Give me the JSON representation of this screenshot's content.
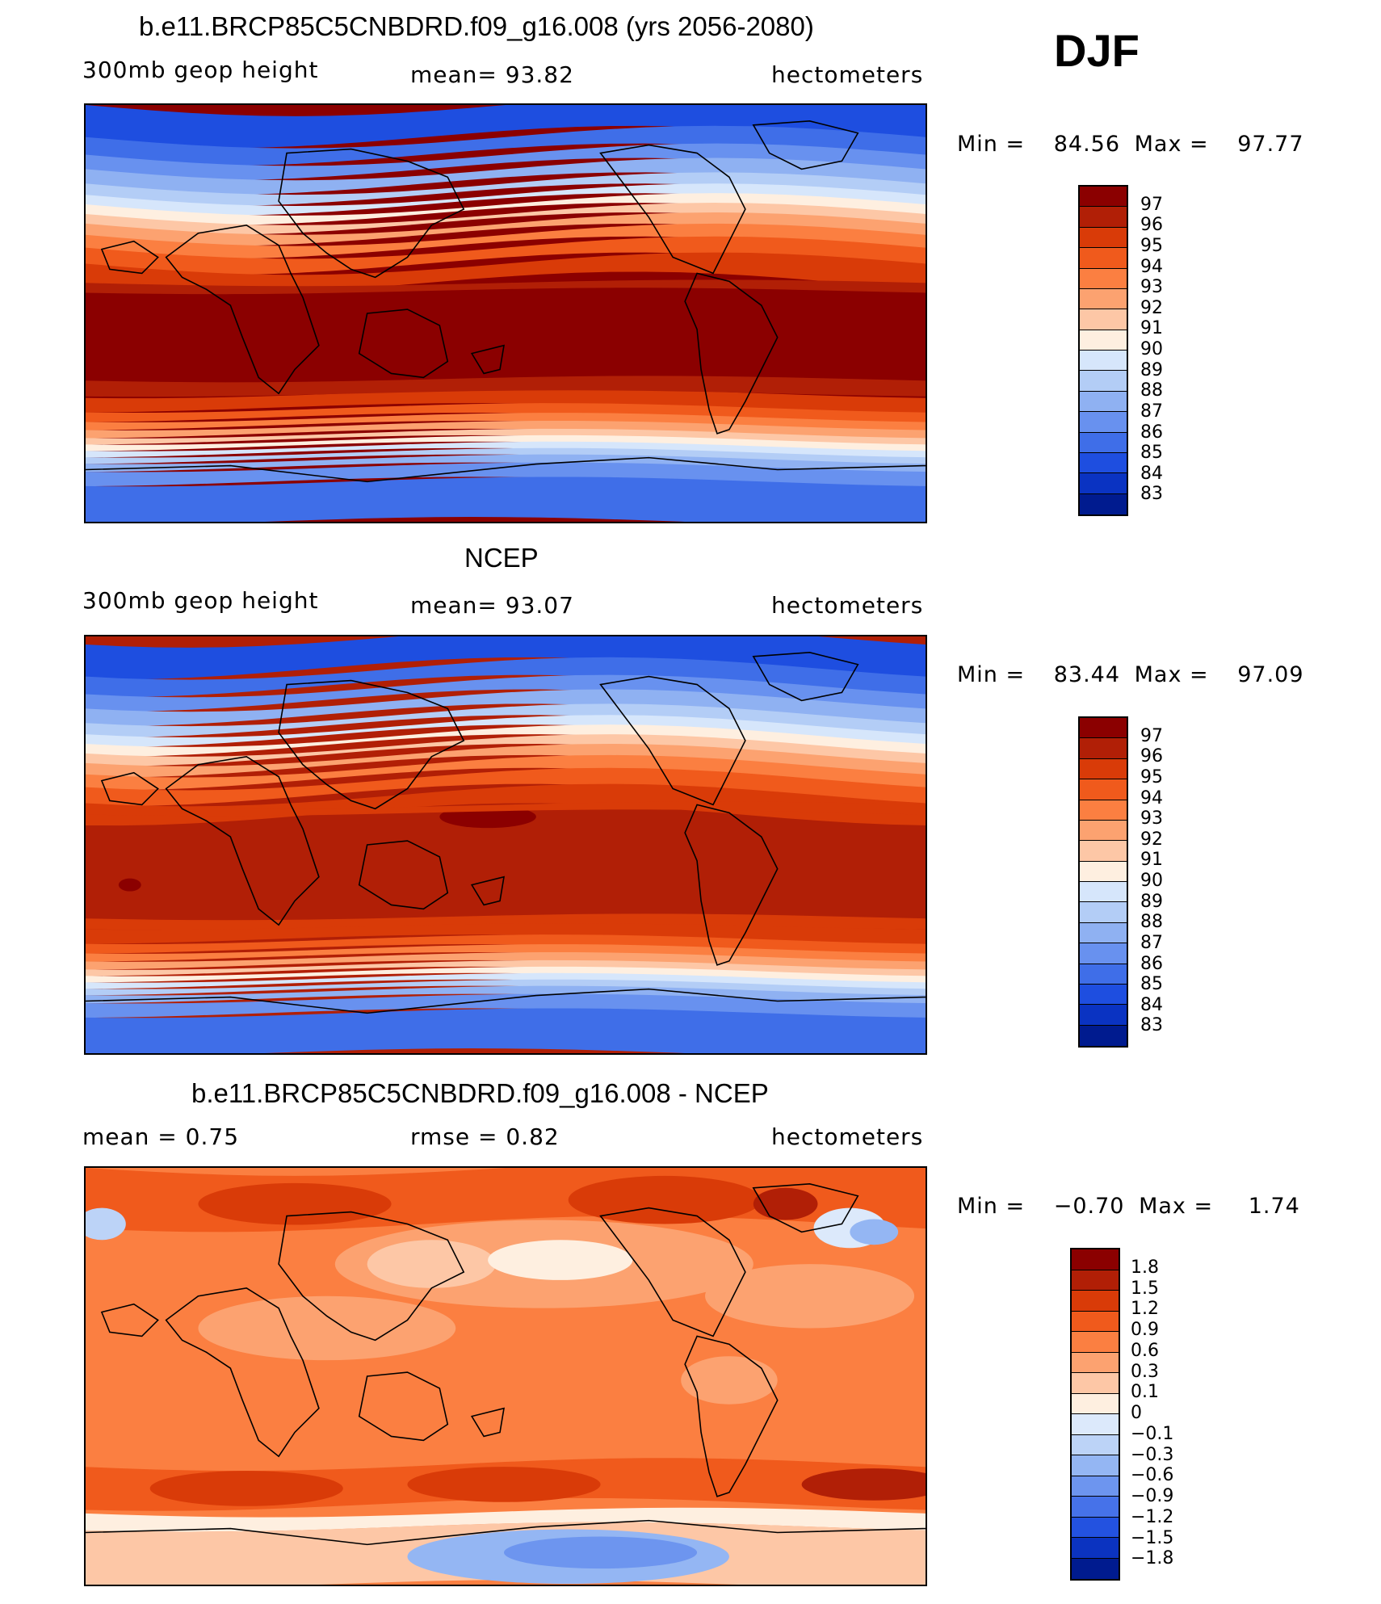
{
  "season": "DJF",
  "panels": [
    {
      "title": "b.e11.BRCP85C5CNBDRD.f09_g16.008 (yrs 2056-2080)",
      "left_label": "300mb geop height",
      "center_label": "mean=  93.82",
      "right_label": "hectometers",
      "min_label": "Min =",
      "min_value": "84.56",
      "max_label": "Max =",
      "max_value": "97.77",
      "colorbar_labels": [
        "97",
        "96",
        "95",
        "94",
        "93",
        "92",
        "91",
        "90",
        "89",
        "88",
        "87",
        "86",
        "85",
        "84",
        "83"
      ]
    },
    {
      "title": "NCEP",
      "left_label": "300mb geop height",
      "center_label": "mean=  93.07",
      "right_label": "hectometers",
      "min_label": "Min =",
      "min_value": "83.44",
      "max_label": "Max =",
      "max_value": "97.09",
      "colorbar_labels": [
        "97",
        "96",
        "95",
        "94",
        "93",
        "92",
        "91",
        "90",
        "89",
        "88",
        "87",
        "86",
        "85",
        "84",
        "83"
      ]
    },
    {
      "title": "b.e11.BRCP85C5CNBDRD.f09_g16.008 - NCEP",
      "left_label": "mean =    0.75",
      "center_label": "rmse =    0.82",
      "right_label": "hectometers",
      "min_label": "Min =",
      "min_value": "−0.70",
      "max_label": "Max =",
      "max_value": "1.74",
      "colorbar_labels": [
        "1.8",
        "1.5",
        "1.2",
        "0.9",
        "0.6",
        "0.3",
        "0.1",
        "0",
        "−0.1",
        "−0.3",
        "−0.6",
        "−0.9",
        "−1.2",
        "−1.5",
        "−1.8"
      ]
    }
  ],
  "colors": {
    "abs_scale": [
      "#8b0000",
      "#b11f06",
      "#d93b08",
      "#f05a1c",
      "#fb7f41",
      "#fca270",
      "#fdc7a6",
      "#feefe0",
      "#d6e6fb",
      "#b3cdf6",
      "#8fb1f2",
      "#6891ef",
      "#3f6ee8",
      "#1e4ee0",
      "#0a33c2",
      "#001b8f"
    ],
    "diff_scale": [
      "#8b0000",
      "#b11f06",
      "#d93b08",
      "#f05a1c",
      "#fb7f41",
      "#fca270",
      "#fdc7a6",
      "#feefe0",
      "#dce9fb",
      "#bcd3f7",
      "#94b6f3",
      "#6d95ef",
      "#4672e9",
      "#2352e0",
      "#0b33c0",
      "#001b8f"
    ],
    "land_outline": "#000000"
  }
}
